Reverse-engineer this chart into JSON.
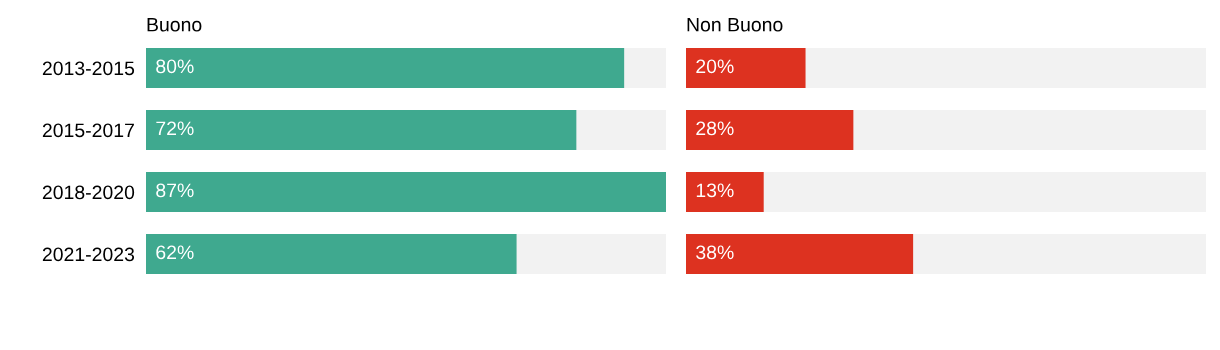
{
  "chart_data": [
    {
      "type": "bar",
      "orientation": "horizontal",
      "title": "Buono",
      "categories": [
        "2013-2015",
        "2015-2017",
        "2018-2020",
        "2021-2023"
      ],
      "values": [
        80,
        72,
        87,
        62
      ],
      "value_labels": [
        "80%",
        "72%",
        "87%",
        "62%"
      ],
      "color": "#3fa98f",
      "xlim": [
        0,
        87
      ],
      "tick_labels": "y",
      "grid": false,
      "legend": false
    },
    {
      "type": "bar",
      "orientation": "horizontal",
      "title": "Non Buono",
      "categories": [
        null,
        null,
        null,
        null
      ],
      "values": [
        20,
        28,
        13,
        38
      ],
      "value_labels": [
        "20%",
        "28%",
        "13%",
        "38%"
      ],
      "color": "#dd3220",
      "xlim": [
        0,
        87
      ],
      "tick_labels": false,
      "grid": false,
      "legend": false
    }
  ]
}
